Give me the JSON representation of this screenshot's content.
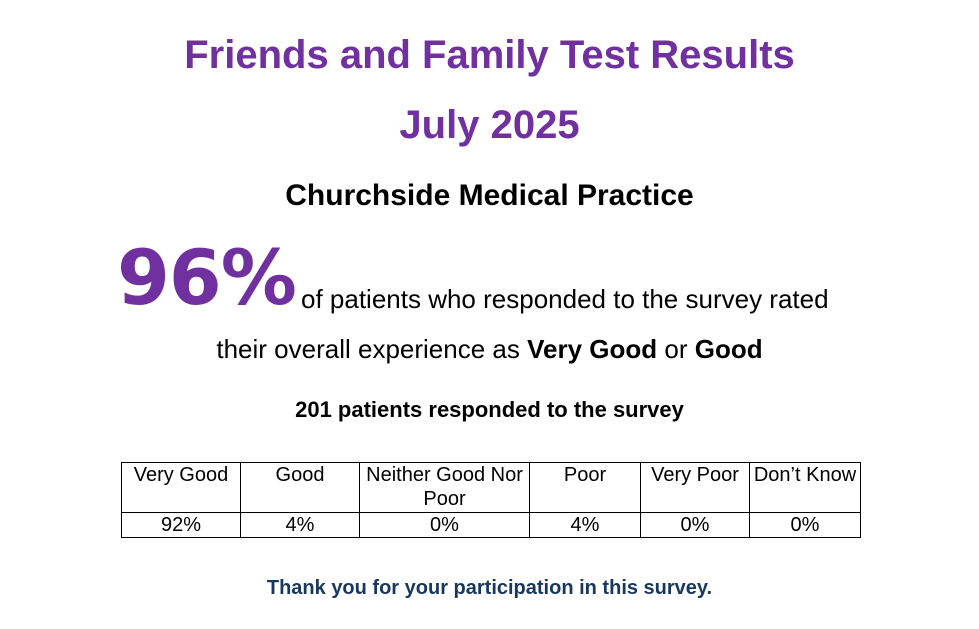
{
  "header": {
    "title": "Friends and Family Test Results",
    "period": "July 2025",
    "practice": "Churchside Medical Practice"
  },
  "summary": {
    "percentage": "96%",
    "text_line1": "of patients who responded to the survey rated",
    "text_line2_prefix": "their overall experience as",
    "highlight1": "Very Good",
    "conjunction": "or",
    "highlight2": "Good",
    "respondents": "201 patients responded to the survey"
  },
  "table": {
    "headers": [
      "Very Good",
      "Good",
      "Neither Good Nor Poor",
      "Poor",
      "Very Poor",
      "Don’t Know"
    ],
    "values": [
      "92%",
      "4%",
      "0%",
      "4%",
      "0%",
      "0%"
    ]
  },
  "footer": {
    "thanks": "Thank you for your participation in this survey."
  },
  "colors": {
    "accent": "#7030a0",
    "footer_text": "#17375e"
  }
}
